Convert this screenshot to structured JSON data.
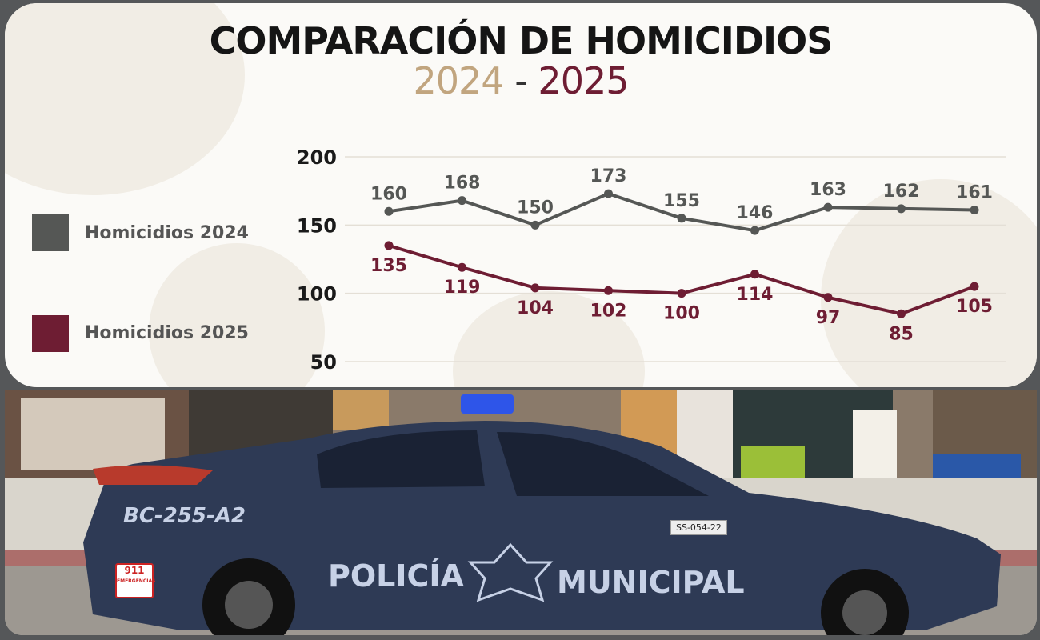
{
  "header": {
    "title": "COMPARACIÓN DE HOMICIDIOS",
    "subtitle_a": "2024",
    "subtitle_sep": "-",
    "subtitle_b": "2025"
  },
  "legend": [
    {
      "label": "Homicidios 2024",
      "color": "#555755"
    },
    {
      "label": "Homicidios 2025",
      "color": "#6e1d33"
    }
  ],
  "chart_data": {
    "type": "line",
    "title": "COMPARACIÓN DE HOMICIDIOS",
    "subtitle": "2024 - 2025",
    "xlabel": "",
    "ylabel": "",
    "ylim": [
      50,
      200
    ],
    "yticks": [
      200,
      150,
      100,
      50
    ],
    "grid": true,
    "legend_position": "left",
    "x": [
      1,
      2,
      3,
      4,
      5,
      6,
      7,
      8,
      9
    ],
    "series": [
      {
        "name": "Homicidios 2024",
        "color": "#555755",
        "values": [
          160,
          168,
          150,
          173,
          155,
          146,
          163,
          162,
          161
        ]
      },
      {
        "name": "Homicidios 2025",
        "color": "#6e1d33",
        "values": [
          135,
          119,
          104,
          102,
          100,
          114,
          97,
          85,
          105
        ]
      }
    ]
  },
  "photo": {
    "car_text_a": "POLICÍA",
    "car_text_b": "MUNICIPAL",
    "plate_a": "BC-255-A2",
    "plate_b": "SS-054-22",
    "badge": "911",
    "badge_sub": "EMERGENCIAS"
  }
}
